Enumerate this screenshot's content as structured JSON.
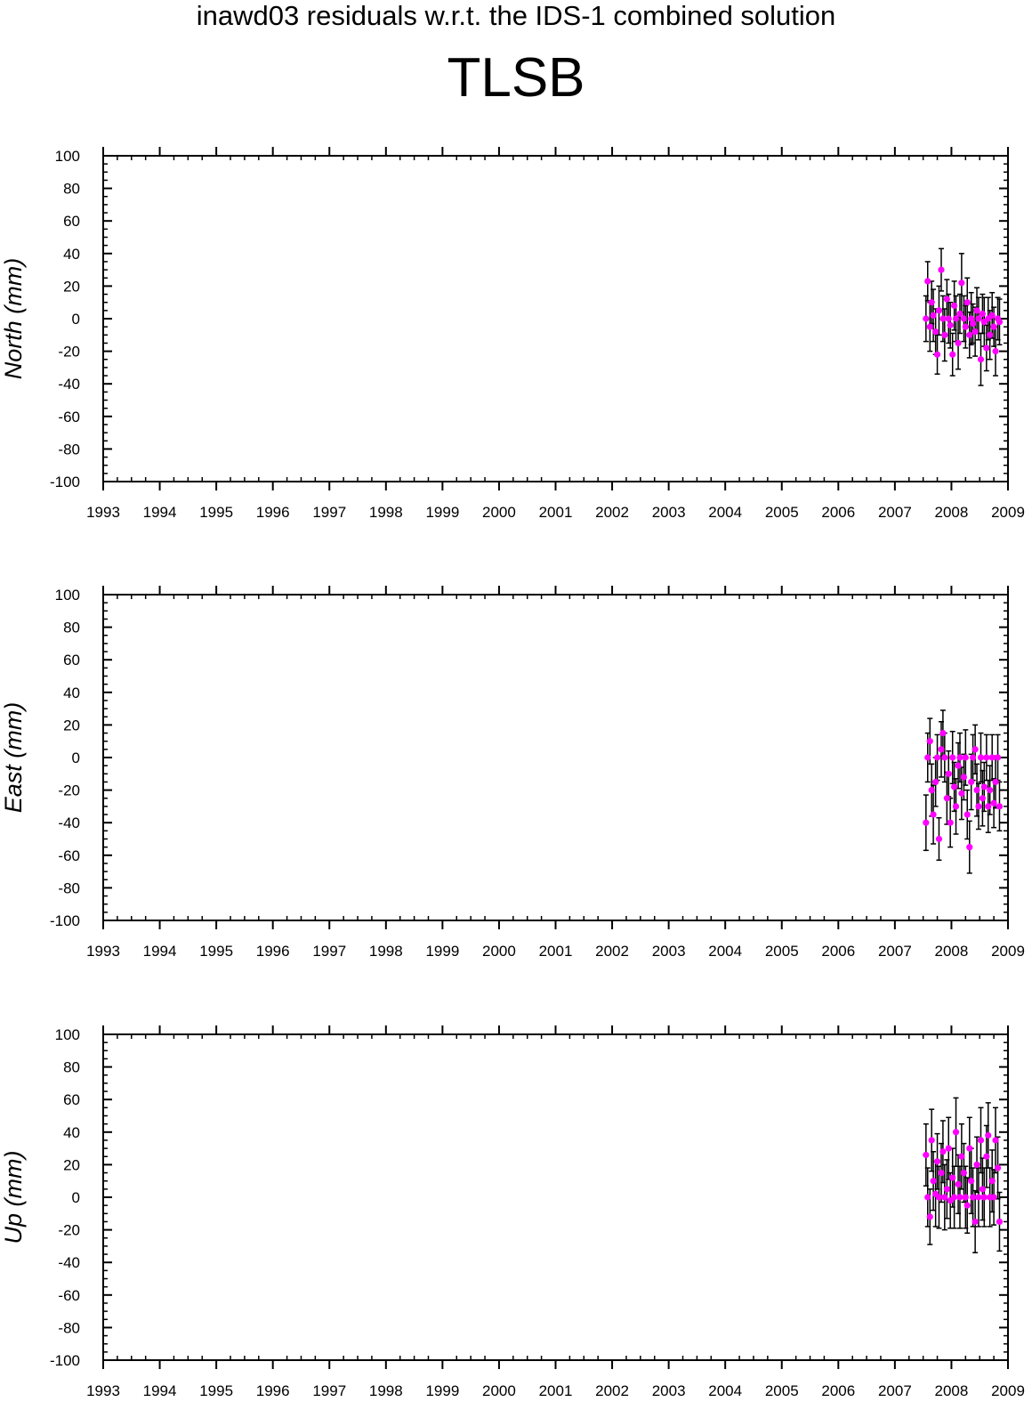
{
  "title": "inawd03 residuals w.r.t. the IDS-1 combined solution",
  "station": "TLSB",
  "colors": {
    "point": "#ff00ff",
    "error_bar": "#000000",
    "axis": "#000000"
  },
  "chart_data": [
    {
      "type": "scatter",
      "ylabel": "North (mm)",
      "xlim": [
        1993,
        2009
      ],
      "ylim": [
        -100,
        100
      ],
      "x_ticks": [
        1993,
        1994,
        1995,
        1996,
        1997,
        1998,
        1999,
        2000,
        2001,
        2002,
        2003,
        2004,
        2005,
        2006,
        2007,
        2008,
        2009
      ],
      "y_ticks": [
        -100,
        -80,
        -60,
        -40,
        -20,
        0,
        20,
        40,
        60,
        80,
        100
      ],
      "x": [
        2007.55,
        2007.58,
        2007.62,
        2007.65,
        2007.68,
        2007.72,
        2007.75,
        2007.78,
        2007.82,
        2007.85,
        2007.88,
        2007.92,
        2007.95,
        2007.98,
        2008.02,
        2008.05,
        2008.08,
        2008.12,
        2008.15,
        2008.18,
        2008.22,
        2008.25,
        2008.28,
        2008.32,
        2008.35,
        2008.38,
        2008.42,
        2008.45,
        2008.48,
        2008.52,
        2008.55,
        2008.58,
        2008.62,
        2008.65,
        2008.68,
        2008.72,
        2008.75,
        2008.78,
        2008.82,
        2008.85
      ],
      "y": [
        0,
        23,
        -5,
        10,
        2,
        -8,
        -22,
        5,
        30,
        0,
        -10,
        12,
        0,
        -4,
        -22,
        8,
        0,
        -15,
        3,
        22,
        0,
        -5,
        10,
        -10,
        0,
        -3,
        -8,
        5,
        0,
        -25,
        3,
        -2,
        -18,
        0,
        -10,
        2,
        -5,
        -20,
        0,
        -2
      ],
      "err": [
        14,
        12,
        15,
        13,
        16,
        14,
        12,
        15,
        13,
        14,
        16,
        12,
        15,
        14,
        13,
        15,
        14,
        16,
        12,
        18,
        14,
        13,
        15,
        14,
        16,
        12,
        15,
        14,
        13,
        16,
        12,
        15,
        14,
        13,
        15,
        14,
        12,
        15,
        13,
        14
      ]
    },
    {
      "type": "scatter",
      "ylabel": "East (mm)",
      "xlim": [
        1993,
        2009
      ],
      "ylim": [
        -100,
        100
      ],
      "x_ticks": [
        1993,
        1994,
        1995,
        1996,
        1997,
        1998,
        1999,
        2000,
        2001,
        2002,
        2003,
        2004,
        2005,
        2006,
        2007,
        2008,
        2009
      ],
      "y_ticks": [
        -100,
        -80,
        -60,
        -40,
        -20,
        0,
        20,
        40,
        60,
        80,
        100
      ],
      "x": [
        2007.55,
        2007.58,
        2007.62,
        2007.65,
        2007.68,
        2007.72,
        2007.75,
        2007.78,
        2007.82,
        2007.85,
        2007.88,
        2007.92,
        2007.95,
        2007.98,
        2008.02,
        2008.05,
        2008.08,
        2008.12,
        2008.15,
        2008.18,
        2008.22,
        2008.25,
        2008.28,
        2008.32,
        2008.35,
        2008.38,
        2008.42,
        2008.45,
        2008.48,
        2008.52,
        2008.55,
        2008.58,
        2008.62,
        2008.65,
        2008.68,
        2008.72,
        2008.75,
        2008.78,
        2008.82,
        2008.85
      ],
      "y": [
        -40,
        0,
        10,
        -20,
        -35,
        -15,
        0,
        -50,
        5,
        15,
        0,
        -25,
        -10,
        -40,
        0,
        -18,
        -30,
        -5,
        0,
        -22,
        -12,
        0,
        -35,
        -55,
        -15,
        0,
        5,
        -20,
        -30,
        0,
        -25,
        -18,
        0,
        -30,
        -20,
        0,
        -28,
        -15,
        0,
        -30
      ],
      "err": [
        17,
        15,
        14,
        16,
        18,
        15,
        14,
        13,
        17,
        14,
        15,
        16,
        14,
        15,
        16,
        15,
        17,
        14,
        15,
        16,
        14,
        17,
        15,
        16,
        17,
        14,
        15,
        16,
        14,
        15,
        17,
        15,
        14,
        16,
        15,
        14,
        15,
        16,
        14,
        15
      ]
    },
    {
      "type": "scatter",
      "ylabel": "Up (mm)",
      "xlim": [
        1993,
        2009
      ],
      "ylim": [
        -100,
        100
      ],
      "x_ticks": [
        1993,
        1994,
        1995,
        1996,
        1997,
        1998,
        1999,
        2000,
        2001,
        2002,
        2003,
        2004,
        2005,
        2006,
        2007,
        2008,
        2009
      ],
      "y_ticks": [
        -100,
        -80,
        -60,
        -40,
        -20,
        0,
        20,
        40,
        60,
        80,
        100
      ],
      "x": [
        2007.55,
        2007.58,
        2007.62,
        2007.65,
        2007.68,
        2007.72,
        2007.75,
        2007.78,
        2007.82,
        2007.85,
        2007.88,
        2007.92,
        2007.95,
        2007.98,
        2008.02,
        2008.05,
        2008.08,
        2008.12,
        2008.15,
        2008.18,
        2008.22,
        2008.25,
        2008.28,
        2008.32,
        2008.35,
        2008.38,
        2008.42,
        2008.45,
        2008.48,
        2008.52,
        2008.55,
        2008.58,
        2008.62,
        2008.65,
        2008.68,
        2008.72,
        2008.75,
        2008.78,
        2008.82,
        2008.85
      ],
      "y": [
        26,
        0,
        -12,
        35,
        10,
        2,
        22,
        0,
        15,
        28,
        0,
        5,
        30,
        -2,
        12,
        0,
        40,
        8,
        0,
        25,
        15,
        0,
        -5,
        30,
        10,
        0,
        -15,
        20,
        0,
        35,
        5,
        0,
        25,
        38,
        0,
        10,
        0,
        35,
        18,
        -15
      ],
      "err": [
        19,
        18,
        17,
        19,
        18,
        20,
        17,
        19,
        18,
        19,
        20,
        18,
        19,
        17,
        18,
        19,
        21,
        18,
        19,
        20,
        18,
        19,
        17,
        19,
        20,
        18,
        19,
        17,
        18,
        20,
        19,
        18,
        19,
        20,
        18,
        19,
        17,
        20,
        19,
        18
      ]
    }
  ]
}
